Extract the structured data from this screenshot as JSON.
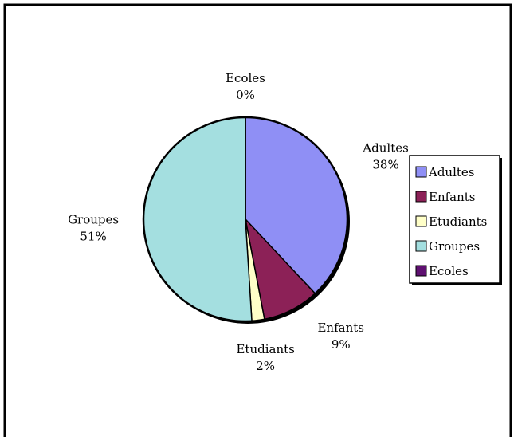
{
  "chart_data": {
    "type": "pie",
    "title": "",
    "categories": [
      "Adultes",
      "Enfants",
      "Etudiants",
      "Groupes",
      "Ecoles"
    ],
    "values": [
      38,
      9,
      2,
      51,
      0
    ],
    "value_labels": [
      "38%",
      "9%",
      "2%",
      "51%",
      "0%"
    ],
    "start_angle": "12 o'clock",
    "direction": "clockwise",
    "legend": {
      "placement": "right",
      "entries": [
        "Adultes",
        "Enfants",
        "Etudiants",
        "Groupes",
        "Ecoles"
      ]
    },
    "colors": {
      "Adultes": "#8f8ff5",
      "Enfants": "#8c2157",
      "Etudiants": "#ffffc8",
      "Groupes": "#a4dfe0",
      "Ecoles": "#5e1070"
    }
  }
}
